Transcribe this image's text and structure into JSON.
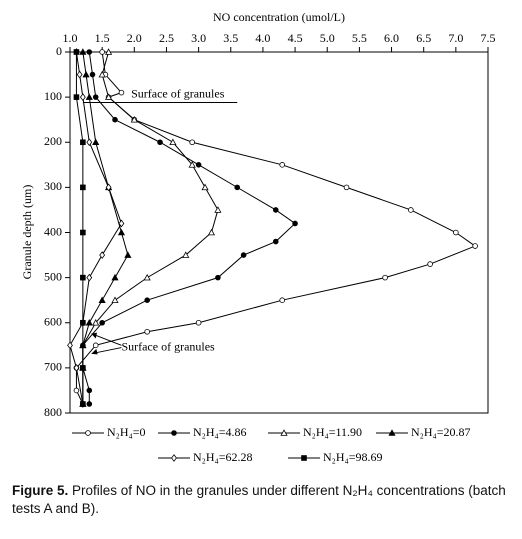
{
  "chart_data": {
    "type": "line",
    "x_label": "NO concentration (umol/L)",
    "y_label": "Granule depth (um)",
    "xlim": [
      1,
      7.5
    ],
    "xticks": [
      {
        "value": 1,
        "label": "1.0"
      },
      1.5,
      {
        "value": 2,
        "label": "2.0"
      },
      2.5,
      {
        "value": 3,
        "label": "3.0"
      },
      3.5,
      {
        "value": 4,
        "label": "4.0"
      },
      4.5,
      {
        "value": 5,
        "label": "5.0"
      },
      5.5,
      {
        "value": 6,
        "label": "6.0"
      },
      6.5,
      {
        "value": 7,
        "label": "7.0"
      },
      7.5
    ],
    "ylim": [
      0,
      800
    ],
    "yticks": [
      0,
      100,
      200,
      300,
      400,
      500,
      600,
      700,
      800
    ],
    "y_inverted": true,
    "series": [
      {
        "name": "N₂H₄=0",
        "color": "#000000",
        "marker": "circle-open",
        "depth": [
          0,
          50,
          90,
          100,
          150,
          200,
          250,
          300,
          350,
          400,
          430,
          470,
          500,
          550,
          600,
          620,
          650,
          700,
          750,
          780
        ],
        "values": [
          1.5,
          1.55,
          1.8,
          1.6,
          2.0,
          2.9,
          4.3,
          5.3,
          6.3,
          7.0,
          7.3,
          6.6,
          5.9,
          4.3,
          3.0,
          2.2,
          1.4,
          1.1,
          1.1,
          1.2
        ]
      },
      {
        "name": "N₂H₄=4.86",
        "color": "#000000",
        "marker": "circle-filled",
        "depth": [
          0,
          50,
          100,
          150,
          200,
          250,
          300,
          350,
          380,
          420,
          450,
          500,
          550,
          600,
          650,
          700,
          750,
          780
        ],
        "values": [
          1.3,
          1.35,
          1.4,
          1.7,
          2.4,
          3.0,
          3.6,
          4.2,
          4.5,
          4.2,
          3.7,
          3.3,
          2.2,
          1.5,
          1.2,
          1.2,
          1.3,
          1.3
        ]
      },
      {
        "name": "N₂H₄=11.90",
        "color": "#000000",
        "marker": "triangle-open",
        "depth": [
          0,
          50,
          100,
          150,
          200,
          250,
          300,
          350,
          400,
          450,
          500,
          550,
          600,
          650,
          700,
          780
        ],
        "values": [
          1.6,
          1.5,
          1.6,
          2.0,
          2.6,
          2.9,
          3.1,
          3.3,
          3.2,
          2.8,
          2.2,
          1.7,
          1.4,
          1.2,
          1.2,
          1.2
        ]
      },
      {
        "name": "N₂H₄=20.87",
        "color": "#000000",
        "marker": "triangle-filled",
        "depth": [
          0,
          50,
          100,
          200,
          300,
          400,
          450,
          500,
          550,
          600,
          650,
          700,
          780
        ],
        "values": [
          1.2,
          1.25,
          1.3,
          1.4,
          1.6,
          1.8,
          1.9,
          1.7,
          1.5,
          1.3,
          1.2,
          1.2,
          1.2
        ]
      },
      {
        "name": "N₂H₄=62.28",
        "color": "#000000",
        "marker": "diamond-open",
        "depth": [
          0,
          50,
          100,
          200,
          300,
          380,
          450,
          500,
          600,
          650,
          700,
          780
        ],
        "values": [
          1.1,
          1.15,
          1.2,
          1.3,
          1.6,
          1.8,
          1.5,
          1.3,
          1.2,
          1.0,
          1.1,
          1.2
        ]
      },
      {
        "name": "N₂H₄=98.69",
        "color": "#000000",
        "marker": "square-filled",
        "depth": [
          0,
          100,
          200,
          300,
          400,
          500,
          600,
          700,
          780
        ],
        "values": [
          1.1,
          1.1,
          1.2,
          1.2,
          1.2,
          1.2,
          1.2,
          1.2,
          1.2
        ]
      }
    ],
    "annotations": [
      "Surface of granules",
      "Surface of granules"
    ],
    "caption": {
      "label": "Figure 5.",
      "text": "Profiles of NO in the granules under different N₂H₄ concentrations (batch tests A and B)."
    }
  }
}
